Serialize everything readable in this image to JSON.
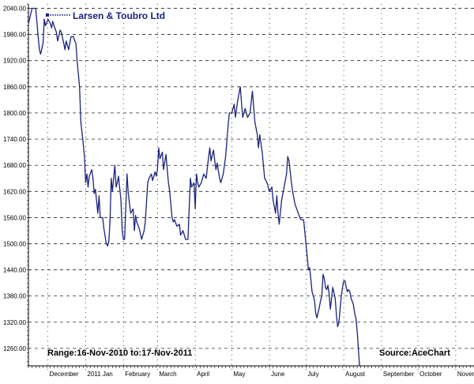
{
  "chart_data": {
    "type": "line",
    "title": "",
    "xlabel": "",
    "ylabel": "",
    "series": [
      {
        "name": "Larsen & Toubro Ltd",
        "color": "#1a237e"
      }
    ],
    "range_label": "Range:16-Nov-2010 to:17-Nov-2011",
    "source_label": "Source:AceChart",
    "ylim": [
      1220,
      2050
    ],
    "y_ticks": [
      "1260.00",
      "1320.00",
      "1380.00",
      "1440.00",
      "1500.00",
      "1560.00",
      "1620.00",
      "1680.00",
      "1740.00",
      "1800.00",
      "1860.00",
      "1920.00",
      "1980.00",
      "2040.00"
    ],
    "x_labels": [
      {
        "label": "December",
        "x": 16
      },
      {
        "label": "2011 Jan",
        "x": 47
      },
      {
        "label": "February",
        "x": 78
      },
      {
        "label": "March",
        "x": 106
      },
      {
        "label": "April",
        "x": 137
      },
      {
        "label": "May",
        "x": 167
      },
      {
        "label": "June",
        "x": 198
      },
      {
        "label": "July",
        "x": 228
      },
      {
        "label": "August",
        "x": 259
      },
      {
        "label": "September",
        "x": 290
      },
      {
        "label": "October",
        "x": 320
      },
      {
        "label": "November",
        "x": 351
      }
    ],
    "xlim": [
      0,
      366
    ],
    "values": [
      [
        0,
        2005
      ],
      [
        3,
        2040
      ],
      [
        6,
        2040
      ],
      [
        8,
        1975
      ],
      [
        9,
        1945
      ],
      [
        10,
        1935
      ],
      [
        12,
        1960
      ],
      [
        13,
        2015
      ],
      [
        14,
        2000
      ],
      [
        16,
        2015
      ],
      [
        18,
        2005
      ],
      [
        19,
        1995
      ],
      [
        20,
        2010
      ],
      [
        21,
        2000
      ],
      [
        23,
        1985
      ],
      [
        24,
        1965
      ],
      [
        26,
        1990
      ],
      [
        27,
        1985
      ],
      [
        29,
        1960
      ],
      [
        30,
        1945
      ],
      [
        31,
        1965
      ],
      [
        33,
        1945
      ],
      [
        35,
        1975
      ],
      [
        37,
        1975
      ],
      [
        38,
        1965
      ],
      [
        39,
        1960
      ],
      [
        40,
        1920
      ],
      [
        42,
        1860
      ],
      [
        43,
        1780
      ],
      [
        45,
        1730
      ],
      [
        46,
        1700
      ],
      [
        47,
        1640
      ],
      [
        48,
        1660
      ],
      [
        49,
        1630
      ],
      [
        50,
        1655
      ],
      [
        52,
        1670
      ],
      [
        53,
        1650
      ],
      [
        54,
        1615
      ],
      [
        55,
        1625
      ],
      [
        57,
        1570
      ],
      [
        58,
        1610
      ],
      [
        59,
        1560
      ],
      [
        61,
        1560
      ],
      [
        62,
        1535
      ],
      [
        64,
        1500
      ],
      [
        65,
        1495
      ],
      [
        66,
        1505
      ],
      [
        67,
        1550
      ],
      [
        68,
        1650
      ],
      [
        69,
        1620
      ],
      [
        71,
        1680
      ],
      [
        72,
        1630
      ],
      [
        73,
        1640
      ],
      [
        74,
        1655
      ],
      [
        76,
        1600
      ],
      [
        77,
        1530
      ],
      [
        78,
        1510
      ],
      [
        79,
        1510
      ],
      [
        81,
        1660
      ],
      [
        82,
        1615
      ],
      [
        84,
        1570
      ],
      [
        86,
        1580
      ],
      [
        87,
        1530
      ],
      [
        88,
        1565
      ],
      [
        89,
        1550
      ],
      [
        91,
        1535
      ],
      [
        93,
        1510
      ],
      [
        95,
        1530
      ],
      [
        96,
        1550
      ],
      [
        98,
        1640
      ],
      [
        99,
        1650
      ],
      [
        101,
        1660
      ],
      [
        102,
        1645
      ],
      [
        104,
        1665
      ],
      [
        105,
        1655
      ],
      [
        106,
        1670
      ],
      [
        107,
        1720
      ],
      [
        108,
        1695
      ],
      [
        110,
        1710
      ],
      [
        111,
        1670
      ],
      [
        113,
        1705
      ],
      [
        114,
        1670
      ],
      [
        115,
        1640
      ],
      [
        116,
        1620
      ],
      [
        117,
        1590
      ],
      [
        118,
        1560
      ],
      [
        119,
        1550
      ],
      [
        120,
        1555
      ],
      [
        122,
        1540
      ],
      [
        124,
        1545
      ],
      [
        125,
        1520
      ],
      [
        127,
        1530
      ],
      [
        129,
        1510
      ],
      [
        131,
        1510
      ],
      [
        133,
        1650
      ],
      [
        134,
        1630
      ],
      [
        136,
        1640
      ],
      [
        137,
        1580
      ],
      [
        138,
        1660
      ],
      [
        139,
        1640
      ],
      [
        140,
        1630
      ],
      [
        142,
        1640
      ],
      [
        144,
        1660
      ],
      [
        146,
        1650
      ],
      [
        148,
        1700
      ],
      [
        149,
        1720
      ],
      [
        150,
        1690
      ],
      [
        152,
        1715
      ],
      [
        154,
        1670
      ],
      [
        155,
        1685
      ],
      [
        157,
        1650
      ],
      [
        158,
        1640
      ],
      [
        160,
        1660
      ],
      [
        162,
        1700
      ],
      [
        164,
        1770
      ],
      [
        165,
        1800
      ],
      [
        167,
        1800
      ],
      [
        168,
        1810
      ],
      [
        169,
        1820
      ],
      [
        170,
        1790
      ],
      [
        172,
        1830
      ],
      [
        174,
        1860
      ],
      [
        176,
        1790
      ],
      [
        178,
        1810
      ],
      [
        180,
        1790
      ],
      [
        182,
        1800
      ],
      [
        184,
        1850
      ],
      [
        186,
        1780
      ],
      [
        188,
        1750
      ],
      [
        189,
        1720
      ],
      [
        190,
        1750
      ],
      [
        192,
        1710
      ],
      [
        193,
        1680
      ],
      [
        194,
        1650
      ],
      [
        196,
        1640
      ],
      [
        198,
        1620
      ],
      [
        200,
        1630
      ],
      [
        201,
        1600
      ],
      [
        203,
        1570
      ],
      [
        204,
        1610
      ],
      [
        205,
        1570
      ],
      [
        206,
        1545
      ],
      [
        208,
        1600
      ],
      [
        210,
        1630
      ],
      [
        212,
        1660
      ],
      [
        213,
        1700
      ],
      [
        214,
        1690
      ],
      [
        216,
        1640
      ],
      [
        217,
        1620
      ],
      [
        219,
        1590
      ],
      [
        221,
        1575
      ],
      [
        223,
        1560
      ],
      [
        224,
        1555
      ],
      [
        226,
        1555
      ],
      [
        228,
        1500
      ],
      [
        229,
        1470
      ],
      [
        230,
        1440
      ],
      [
        231,
        1445
      ],
      [
        233,
        1390
      ],
      [
        235,
        1370
      ],
      [
        236,
        1340
      ],
      [
        237,
        1330
      ],
      [
        239,
        1355
      ],
      [
        240,
        1370
      ],
      [
        241,
        1380
      ],
      [
        242,
        1430
      ],
      [
        243,
        1420
      ],
      [
        244,
        1400
      ],
      [
        245,
        1395
      ],
      [
        246,
        1405
      ],
      [
        247,
        1385
      ],
      [
        248,
        1350
      ],
      [
        250,
        1400
      ],
      [
        252,
        1375
      ],
      [
        253,
        1335
      ],
      [
        254,
        1310
      ],
      [
        255,
        1320
      ],
      [
        256,
        1350
      ],
      [
        257,
        1380
      ],
      [
        258,
        1400
      ],
      [
        259,
        1415
      ],
      [
        260,
        1415
      ],
      [
        261,
        1400
      ],
      [
        262,
        1390
      ],
      [
        263,
        1395
      ],
      [
        264,
        1390
      ],
      [
        265,
        1375
      ],
      [
        267,
        1360
      ],
      [
        268,
        1340
      ],
      [
        269,
        1330
      ],
      [
        270,
        1300
      ],
      [
        271,
        1260
      ],
      [
        272,
        1220
      ]
    ]
  }
}
